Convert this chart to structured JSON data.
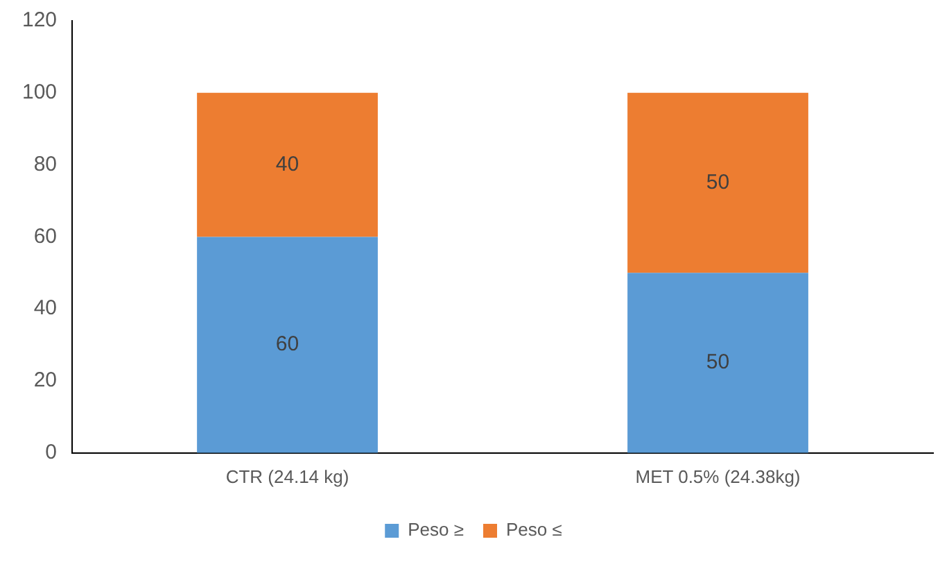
{
  "chart_data": {
    "type": "bar",
    "stacked": true,
    "categories": [
      "CTR (24.14 kg)",
      "MET 0.5% (24.38kg)"
    ],
    "series": [
      {
        "name": "Peso ≥",
        "color": "#5b9bd5",
        "values": [
          60,
          50
        ]
      },
      {
        "name": "Peso ≤",
        "color": "#ed7d31",
        "values": [
          40,
          50
        ]
      }
    ],
    "ylim": [
      0,
      120
    ],
    "yticks": [
      0,
      20,
      40,
      60,
      80,
      100,
      120
    ],
    "grid": false,
    "legend": "bottom",
    "data_labels": true
  }
}
